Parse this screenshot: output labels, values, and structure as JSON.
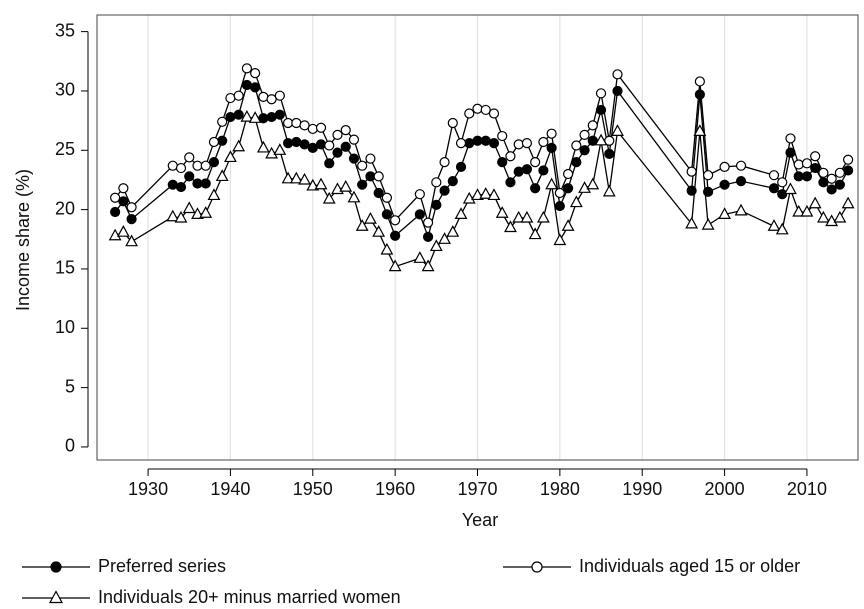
{
  "chart_data": {
    "type": "line",
    "xlabel": "Year",
    "ylabel": "Income share (%)",
    "x": [
      1926,
      1927,
      1928,
      1933,
      1934,
      1935,
      1936,
      1937,
      1938,
      1939,
      1940,
      1941,
      1942,
      1943,
      1944,
      1945,
      1946,
      1947,
      1948,
      1949,
      1950,
      1951,
      1952,
      1953,
      1954,
      1955,
      1956,
      1957,
      1958,
      1959,
      1960,
      1963,
      1964,
      1965,
      1966,
      1967,
      1968,
      1969,
      1970,
      1971,
      1972,
      1973,
      1974,
      1975,
      1976,
      1977,
      1978,
      1979,
      1980,
      1981,
      1982,
      1983,
      1984,
      1985,
      1986,
      1987,
      1996,
      1997,
      1998,
      2000,
      2002,
      2006,
      2007,
      2008,
      2009,
      2010,
      2011,
      2012,
      2013,
      2014,
      2015
    ],
    "series": [
      {
        "name": "Preferred series",
        "color": "#000000",
        "marker": "filled-circle",
        "values": [
          19.8,
          20.7,
          19.2,
          22.1,
          21.9,
          22.8,
          22.2,
          22.2,
          24.0,
          25.8,
          27.8,
          28.0,
          30.5,
          30.3,
          27.7,
          27.8,
          28.0,
          25.6,
          25.7,
          25.5,
          25.2,
          25.5,
          23.9,
          24.8,
          25.3,
          24.3,
          22.1,
          22.8,
          21.4,
          19.6,
          17.8,
          19.6,
          17.7,
          20.4,
          21.6,
          22.4,
          23.6,
          25.6,
          25.8,
          25.8,
          25.6,
          24.0,
          22.3,
          23.2,
          23.4,
          21.8,
          23.3,
          25.2,
          20.3,
          21.8,
          24.0,
          25.0,
          25.8,
          28.4,
          24.7,
          30.0,
          21.6,
          29.7,
          21.5,
          22.1,
          22.4,
          21.8,
          21.3,
          24.8,
          22.8,
          22.8,
          23.5,
          22.3,
          21.7,
          22.1,
          23.3
        ]
      },
      {
        "name": "Individuals aged 15 or older",
        "color": "#000000",
        "marker": "open-circle",
        "values": [
          21.0,
          21.8,
          20.2,
          23.7,
          23.5,
          24.4,
          23.7,
          23.7,
          25.7,
          27.4,
          29.4,
          29.6,
          31.9,
          31.5,
          29.5,
          29.3,
          29.6,
          27.3,
          27.3,
          27.1,
          26.8,
          26.9,
          25.4,
          26.3,
          26.7,
          25.9,
          23.7,
          24.3,
          22.8,
          21.0,
          19.1,
          21.3,
          18.9,
          22.3,
          24.0,
          27.3,
          25.6,
          28.1,
          28.5,
          28.4,
          28.1,
          26.2,
          24.5,
          25.5,
          25.6,
          24.0,
          25.7,
          26.4,
          21.4,
          23.0,
          25.4,
          26.3,
          27.1,
          29.8,
          25.8,
          31.4,
          23.2,
          30.8,
          22.9,
          23.6,
          23.7,
          22.9,
          22.3,
          26.0,
          23.8,
          23.9,
          24.5,
          23.1,
          22.6,
          23.1,
          24.2
        ]
      },
      {
        "name": "Individuals 20+ minus married women",
        "color": "#000000",
        "marker": "open-triangle",
        "values": [
          17.8,
          18.1,
          17.3,
          19.4,
          19.3,
          20.1,
          19.6,
          19.7,
          21.2,
          22.8,
          24.4,
          25.3,
          27.8,
          27.7,
          25.2,
          24.7,
          25.0,
          22.6,
          22.6,
          22.5,
          22.0,
          22.1,
          20.9,
          21.7,
          21.9,
          21.0,
          18.6,
          19.2,
          18.1,
          16.6,
          15.2,
          15.9,
          15.2,
          16.9,
          17.5,
          18.1,
          19.6,
          20.9,
          21.2,
          21.3,
          21.2,
          19.7,
          18.5,
          19.3,
          19.3,
          17.9,
          19.3,
          22.1,
          17.4,
          18.6,
          20.6,
          21.8,
          22.1,
          25.8,
          21.5,
          26.6,
          18.8,
          26.6,
          18.7,
          19.6,
          19.9,
          18.6,
          18.3,
          21.7,
          19.8,
          19.8,
          20.5,
          19.3,
          19.0,
          19.3,
          20.5
        ]
      }
    ],
    "xlim": [
      1923.8,
      2016.2
    ],
    "xticks": [
      1930,
      1940,
      1950,
      1960,
      1970,
      1980,
      1990,
      2000,
      2010
    ],
    "ylim": [
      -1.1,
      36.4
    ],
    "yticks": [
      0,
      5,
      10,
      15,
      20,
      25,
      30,
      35
    ],
    "grid": "x",
    "legend": "bottom"
  }
}
